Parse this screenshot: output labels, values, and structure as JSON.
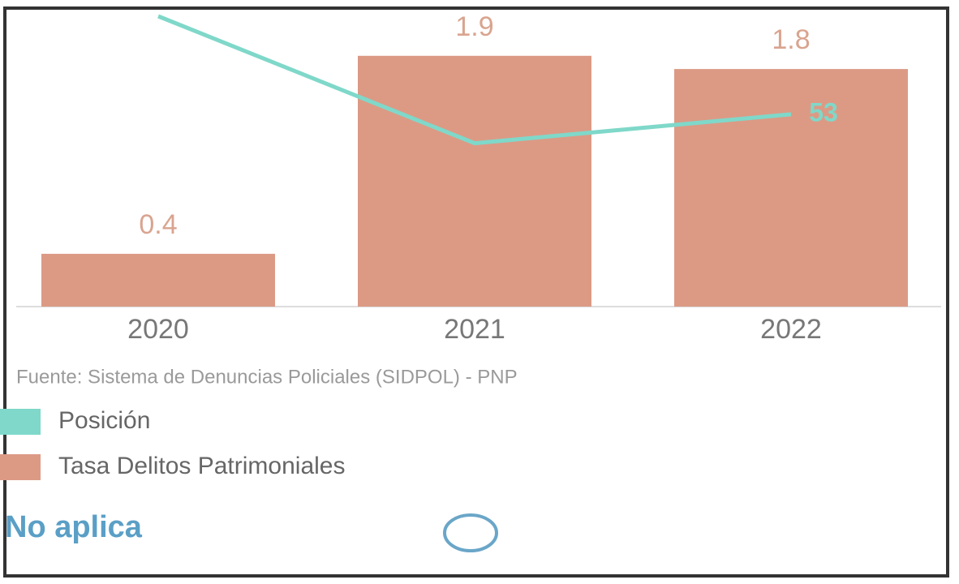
{
  "chart_data": {
    "type": "bar",
    "categories": [
      "2020",
      "2021",
      "2022"
    ],
    "series": [
      {
        "name": "Posición",
        "type": "line",
        "color": "#7fd8c9",
        "axis": "y2",
        "values": [
          80,
          45,
          53
        ],
        "value_labels": [
          null,
          null,
          "53"
        ]
      },
      {
        "name": "Tasa Delitos Patrimoniales",
        "type": "bar",
        "color": "#dc9a85",
        "values": [
          0.4,
          1.9,
          1.8
        ]
      }
    ],
    "ylim": [
      0,
      2.2
    ],
    "y2lim": [
      0,
      80
    ],
    "source": "Fuente: Sistema de Denuncias Policiales (SIDPOL) - PNP",
    "note": "No aplica"
  }
}
